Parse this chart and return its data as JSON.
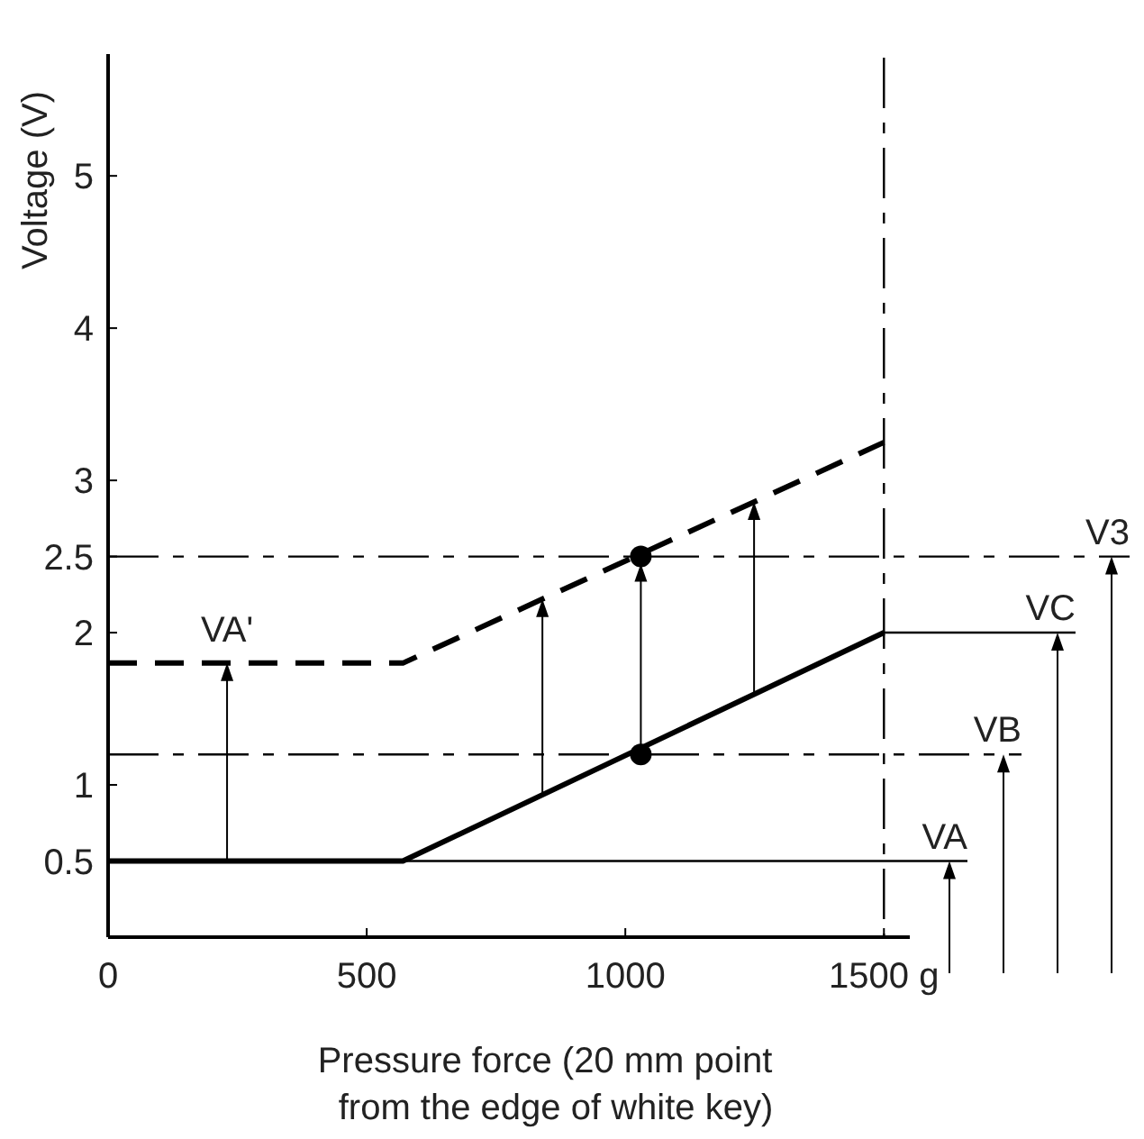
{
  "chart_data": {
    "type": "line",
    "xlabel": "Pressure force (20 mm point\nfrom the edge of white key)",
    "ylabel": "Voltage (V)",
    "xlim": [
      0,
      1550
    ],
    "ylim": [
      0,
      5.8
    ],
    "xticks": [
      0,
      500,
      1000,
      {
        "value": 1500,
        "label": "1500 g"
      }
    ],
    "yticks": [
      0.5,
      1,
      2,
      2.5,
      3,
      4,
      5
    ],
    "series": [
      {
        "color": "#000000",
        "x": [
          0,
          570,
          1500
        ],
        "values": [
          0.5,
          0.5,
          2
        ],
        "line_style": "solid"
      },
      {
        "color": "#000000",
        "x": [
          0,
          570,
          1500
        ],
        "values": [
          1.8,
          1.8,
          3.25
        ],
        "line_style": "dashed"
      },
      {
        "type": "scatter",
        "color": "#000000",
        "x": [
          1030,
          1030
        ],
        "values": [
          1.2,
          2.5
        ],
        "marker": "circle"
      }
    ],
    "ref_lines": [
      {
        "axis": "y",
        "value": 0.5,
        "label": "VA",
        "line_style": "solid"
      },
      {
        "axis": "y",
        "value": 1.2,
        "label": "VB",
        "line_style": "dashed"
      },
      {
        "axis": "y",
        "value": 2,
        "label": "VC",
        "line_style": "solid"
      },
      {
        "axis": "y",
        "value": 2.5,
        "label": "V3",
        "line_style": "dashed"
      },
      {
        "axis": "x",
        "value": 1500,
        "label": null,
        "line_style": "dashed"
      }
    ],
    "annotations": [
      {
        "text": "VA'",
        "x": 230,
        "y": 1.8
      }
    ],
    "grid": false
  }
}
